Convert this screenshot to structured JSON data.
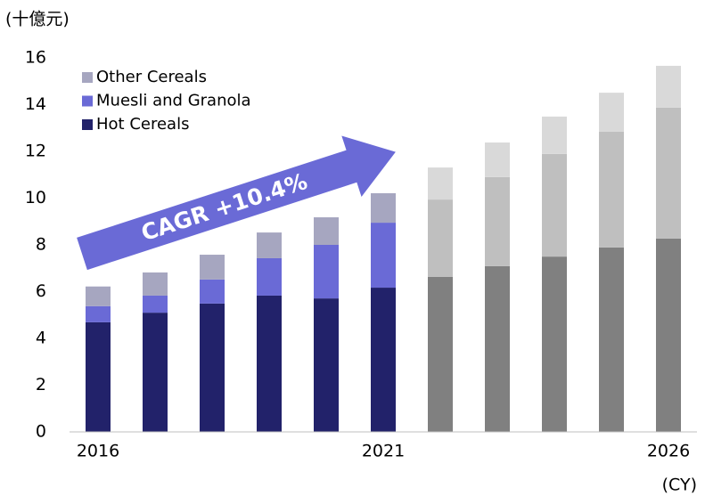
{
  "chart_data": {
    "type": "stacked_bar",
    "unit_label": "(十億元)",
    "x_unit_label": "(CY)",
    "annotation": "CAGR +10.4%",
    "categories": [
      "2016",
      null,
      null,
      null,
      null,
      "2021",
      null,
      null,
      null,
      null,
      "2026"
    ],
    "series": [
      {
        "name": "Hot Cereals",
        "color": "#22226a",
        "colors": [
          "#22226a",
          "#22226a",
          "#22226a",
          "#22226a",
          "#22226a",
          "#22226a",
          "#808080",
          "#808080",
          "#808080",
          "#808080",
          "#808080"
        ],
        "values": [
          4.69,
          5.1,
          5.49,
          5.83,
          5.71,
          6.17,
          6.63,
          7.09,
          7.5,
          7.89,
          8.27
        ]
      },
      {
        "name": "Muesli and Granola",
        "color": "#6a6ad6",
        "colors": [
          "#6a6ad6",
          "#6a6ad6",
          "#6a6ad6",
          "#6a6ad6",
          "#6a6ad6",
          "#6a6ad6",
          "#bfbfbf",
          "#bfbfbf",
          "#bfbfbf",
          "#bfbfbf",
          "#bfbfbf"
        ],
        "values": [
          0.69,
          0.73,
          1.03,
          1.6,
          2.29,
          2.78,
          3.31,
          3.81,
          4.39,
          4.95,
          5.6
        ]
      },
      {
        "name": "Other Cereals",
        "color": "#a6a6c0",
        "colors": [
          "#a6a6c0",
          "#a6a6c0",
          "#a6a6c0",
          "#a6a6c0",
          "#a6a6c0",
          "#a6a6c0",
          "#d9d9d9",
          "#d9d9d9",
          "#d9d9d9",
          "#d9d9d9",
          "#d9d9d9"
        ],
        "values": [
          0.84,
          0.99,
          1.06,
          1.1,
          1.18,
          1.26,
          1.37,
          1.48,
          1.6,
          1.67,
          1.79
        ]
      }
    ],
    "ylim": [
      0,
      16
    ],
    "yticks": [
      0,
      2,
      4,
      6,
      8,
      10,
      12,
      14,
      16
    ],
    "grid": false,
    "legend": "upper left"
  }
}
